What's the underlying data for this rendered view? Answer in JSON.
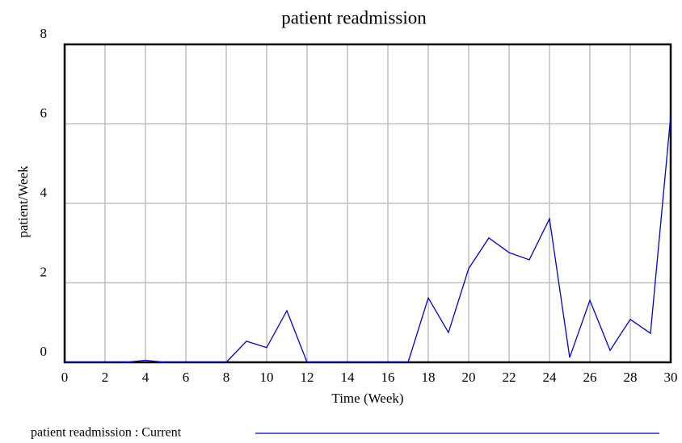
{
  "chart_data": {
    "type": "line",
    "title": "patient readmission",
    "x_label": "Time (Week)",
    "y_label": "patient/Week",
    "x": [
      0,
      1,
      2,
      3,
      4,
      5,
      6,
      7,
      8,
      9,
      10,
      11,
      12,
      13,
      14,
      15,
      16,
      17,
      18,
      19,
      20,
      21,
      22,
      23,
      24,
      25,
      26,
      27,
      28,
      29,
      30
    ],
    "series": [
      {
        "name": "patient readmission : Current",
        "color": "#0000cc",
        "values": [
          0,
          0,
          0,
          0,
          0.05,
          0,
          0,
          0,
          0,
          0.53,
          0.37,
          1.3,
          0,
          0,
          0,
          0,
          0,
          0,
          1.62,
          0.75,
          2.36,
          3.13,
          2.76,
          2.58,
          3.61,
          0.12,
          1.56,
          0.3,
          1.08,
          0.73,
          6.2
        ]
      }
    ],
    "xlim": [
      0,
      30
    ],
    "xticks": [
      0,
      2,
      4,
      6,
      8,
      10,
      12,
      14,
      16,
      18,
      20,
      22,
      24,
      26,
      28,
      30
    ],
    "ylim": [
      0,
      8
    ],
    "yticks": [
      0,
      2,
      4,
      6,
      8
    ],
    "grid": true
  }
}
